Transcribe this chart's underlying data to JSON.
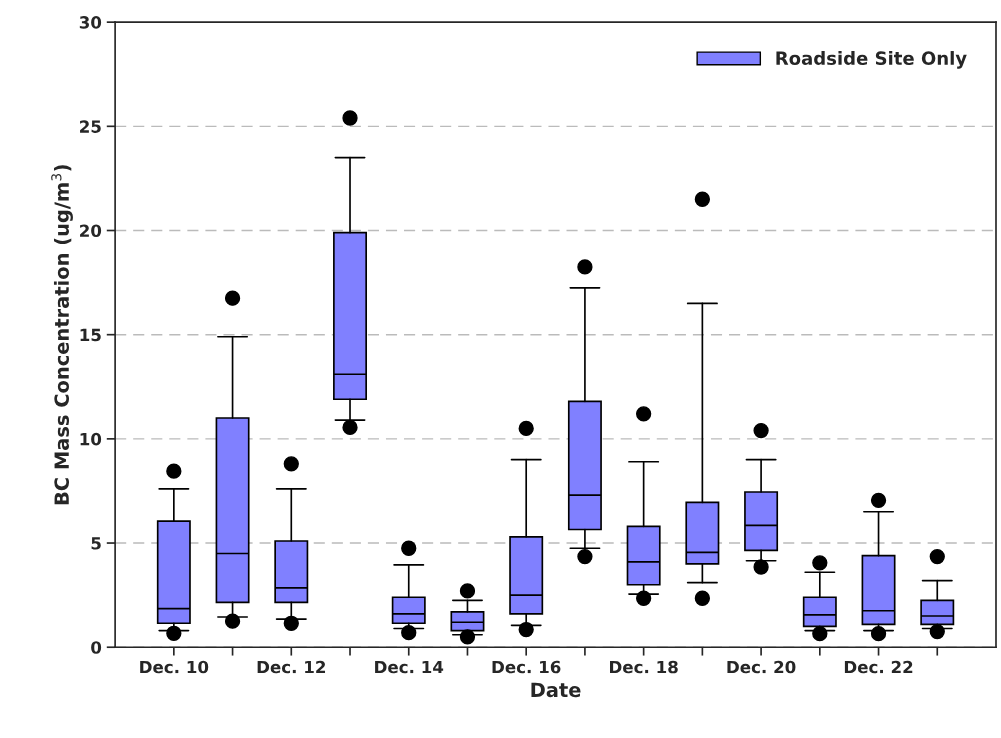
{
  "chart_data": {
    "type": "box",
    "xlabel": "Date",
    "ylabel": "BC Mass Concentration (ug/m$^{3}$)",
    "categories": [
      "Dec. 10",
      null,
      "Dec. 12",
      null,
      "Dec. 14",
      null,
      "Dec. 16",
      null,
      "Dec. 18",
      null,
      "Dec. 20",
      null,
      "Dec. 22",
      null
    ],
    "series": [
      {
        "name": "Roadside Site Only",
        "color": "#8080ff",
        "boxes": [
          {
            "low": 0.8,
            "q1": 1.15,
            "median": 1.85,
            "q3": 6.05,
            "high": 7.6,
            "outliers": [
              8.45,
              0.67
            ]
          },
          {
            "low": 1.45,
            "q1": 2.15,
            "median": 4.5,
            "q3": 11.0,
            "high": 14.9,
            "outliers": [
              16.75,
              1.25
            ]
          },
          {
            "low": 1.35,
            "q1": 2.15,
            "median": 2.85,
            "q3": 5.1,
            "high": 7.6,
            "outliers": [
              8.8,
              1.15
            ]
          },
          {
            "low": 10.9,
            "q1": 11.9,
            "median": 13.1,
            "q3": 19.9,
            "high": 23.5,
            "outliers": [
              25.4,
              10.55
            ]
          },
          {
            "low": 0.9,
            "q1": 1.15,
            "median": 1.6,
            "q3": 2.4,
            "high": 3.95,
            "outliers": [
              4.75,
              0.7
            ]
          },
          {
            "low": 0.6,
            "q1": 0.8,
            "median": 1.2,
            "q3": 1.7,
            "high": 2.25,
            "outliers": [
              2.7,
              0.5
            ]
          },
          {
            "low": 1.05,
            "q1": 1.6,
            "median": 2.5,
            "q3": 5.3,
            "high": 9.0,
            "outliers": [
              10.5,
              0.85
            ]
          },
          {
            "low": 4.75,
            "q1": 5.65,
            "median": 7.3,
            "q3": 11.8,
            "high": 17.25,
            "outliers": [
              18.25,
              4.35
            ]
          },
          {
            "low": 2.55,
            "q1": 3.0,
            "median": 4.1,
            "q3": 5.8,
            "high": 8.9,
            "outliers": [
              11.2,
              2.35
            ]
          },
          {
            "low": 3.1,
            "q1": 4.0,
            "median": 4.55,
            "q3": 6.95,
            "high": 16.5,
            "outliers": [
              21.5,
              2.35
            ]
          },
          {
            "low": 4.15,
            "q1": 4.65,
            "median": 5.85,
            "q3": 7.45,
            "high": 9.0,
            "outliers": [
              10.4,
              3.85
            ]
          },
          {
            "low": 0.8,
            "q1": 1.0,
            "median": 1.55,
            "q3": 2.4,
            "high": 3.6,
            "outliers": [
              4.05,
              0.65
            ]
          },
          {
            "low": 0.8,
            "q1": 1.1,
            "median": 1.75,
            "q3": 4.4,
            "high": 6.5,
            "outliers": [
              7.05,
              0.65
            ]
          },
          {
            "low": 0.9,
            "q1": 1.1,
            "median": 1.5,
            "q3": 2.25,
            "high": 3.2,
            "outliers": [
              4.35,
              0.75
            ]
          }
        ]
      }
    ],
    "ylim": [
      0,
      30
    ],
    "yticks": [
      0,
      5,
      10,
      15,
      20,
      25,
      30
    ],
    "grid": "y",
    "legend": "top right"
  }
}
